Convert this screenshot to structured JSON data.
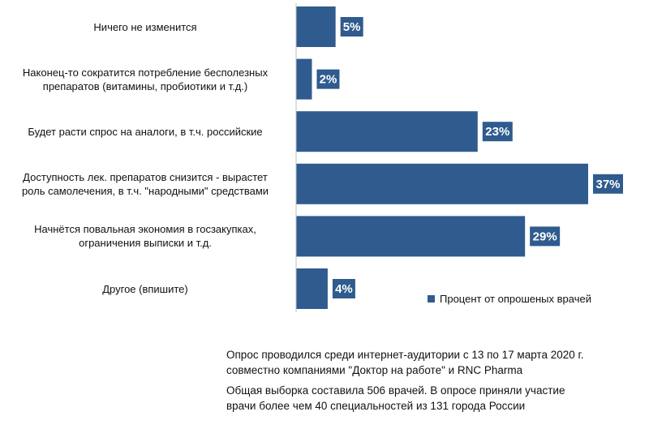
{
  "chart_data": {
    "type": "bar",
    "orientation": "horizontal",
    "categories": [
      [
        "Ничего не изменится"
      ],
      [
        "Наконец-то сократится потребление бесполезных",
        "препаратов (витамины, пробиотики и т.д.)"
      ],
      [
        "Будет расти спрос на аналоги, в т.ч. российские"
      ],
      [
        "Доступность лек. препаратов снизится - вырастет",
        "роль самолечения, в т.ч. \"народными\" средствами"
      ],
      [
        "Начнётся повальная экономия в госзакупках,",
        "ограничения выписки и т.д."
      ],
      [
        "Другое (впишите)"
      ]
    ],
    "series": [
      {
        "name": "Процент от опрошеных врачей",
        "values": [
          5,
          2,
          23,
          37,
          29,
          4
        ],
        "color": "#2f5b8e"
      }
    ],
    "value_labels": [
      "5%",
      "2%",
      "23%",
      "37%",
      "29%",
      "4%"
    ],
    "xlim": [
      0,
      37
    ],
    "grid": false,
    "legend_position": "bottom-right"
  },
  "notes": [
    {
      "line1": "Опрос проводился среди интернет-аудитории с 13 по 17 марта 2020 г.",
      "line2": "совместно компаниями \"Доктор на работе\" и RNC Pharma"
    },
    {
      "line1": "Общая выборка составила 506 врачей. В опросе приняли участие",
      "line2": "врачи более чем 40 специальностей из 131 города России"
    }
  ],
  "colors": {
    "bar": "#2f5b8e",
    "label_text": "#ffffff"
  }
}
